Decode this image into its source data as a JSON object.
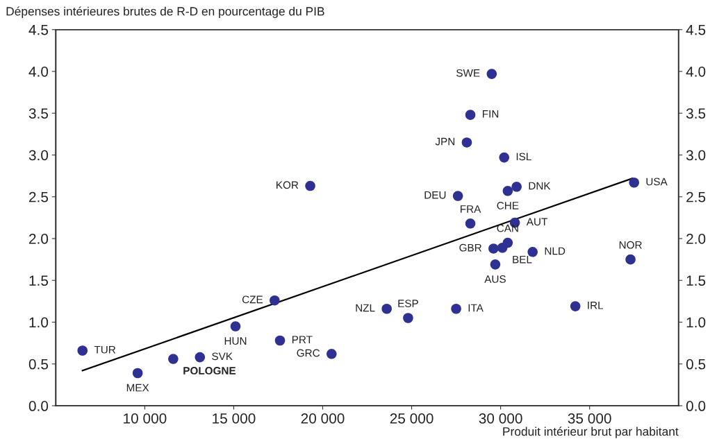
{
  "chart_data": {
    "type": "scatter",
    "ylabel": "Dépenses intérieures brutes de R-D en pourcentage du PIB",
    "xlabel": "Produit intérieur brut par habitant",
    "xlim": [
      5000,
      40000
    ],
    "xticks": [
      {
        "value": 10000,
        "label": "10 000"
      },
      {
        "value": 15000,
        "label": "15 000"
      },
      {
        "value": 20000,
        "label": "20 000"
      },
      {
        "value": 25000,
        "label": "25 000"
      },
      {
        "value": 30000,
        "label": "30 000"
      },
      {
        "value": 35000,
        "label": "35 000"
      }
    ],
    "ylim": [
      0,
      4.5
    ],
    "yticks": [
      {
        "value": 0,
        "label": "0.0"
      },
      {
        "value": 0.5,
        "label": "0.5"
      },
      {
        "value": 1,
        "label": "1.0"
      },
      {
        "value": 1.5,
        "label": "1.5"
      },
      {
        "value": 2,
        "label": "2.0"
      },
      {
        "value": 2.5,
        "label": "2.5"
      },
      {
        "value": 3,
        "label": "3.0"
      },
      {
        "value": 3.5,
        "label": "3.5"
      },
      {
        "value": 4,
        "label": "4.0"
      },
      {
        "value": 4.5,
        "label": "4.5"
      }
    ],
    "y2lim": [
      0,
      4.5
    ],
    "y2ticks": [
      {
        "value": 0,
        "label": "0.0"
      },
      {
        "value": 0.5,
        "label": "0.5"
      },
      {
        "value": 1,
        "label": "1.0"
      },
      {
        "value": 1.5,
        "label": "1.5"
      },
      {
        "value": 2,
        "label": "2.0"
      },
      {
        "value": 2.5,
        "label": "2.5"
      },
      {
        "value": 3,
        "label": "3.0"
      },
      {
        "value": 3.5,
        "label": "3.5"
      },
      {
        "value": 4,
        "label": "4.0"
      },
      {
        "value": 4.5,
        "label": "4.5"
      }
    ],
    "grid": false,
    "legend": false,
    "marker": "circle",
    "series": [
      {
        "color": "#2e3192",
        "x": [
          29500,
          28300,
          28100,
          30200,
          19300,
          27600,
          30400,
          30900,
          37500,
          28300,
          30800,
          30400,
          29600,
          30100,
          31800,
          37300,
          29700,
          17300,
          23600,
          24800,
          27500,
          34200,
          6500,
          15100,
          17600,
          20500,
          13100,
          11600,
          9600
        ],
        "values": [
          3.97,
          3.48,
          3.15,
          2.97,
          2.63,
          2.51,
          2.57,
          2.62,
          2.67,
          2.18,
          2.19,
          1.95,
          1.88,
          1.89,
          1.84,
          1.75,
          1.69,
          1.26,
          1.16,
          1.05,
          1.16,
          1.19,
          0.66,
          0.95,
          0.78,
          0.62,
          0.58,
          0.56,
          0.39
        ]
      },
      {
        "type": "line",
        "color": "#000000",
        "line_style": "solid",
        "marker": "none",
        "x": [
          6500,
          37400
        ],
        "values": [
          0.42,
          2.72
        ]
      }
    ],
    "annotations": [
      {
        "text": "SWE",
        "x": 29500,
        "y": 3.97
      },
      {
        "text": "FIN",
        "x": 28300,
        "y": 3.48
      },
      {
        "text": "JPN",
        "x": 28100,
        "y": 3.15
      },
      {
        "text": "ISL",
        "x": 30200,
        "y": 2.97
      },
      {
        "text": "KOR",
        "x": 19300,
        "y": 2.63
      },
      {
        "text": "DEU",
        "x": 27600,
        "y": 2.51
      },
      {
        "text": "CHE",
        "x": 30400,
        "y": 2.57
      },
      {
        "text": "DNK",
        "x": 30900,
        "y": 2.62
      },
      {
        "text": "USA",
        "x": 37500,
        "y": 2.67
      },
      {
        "text": "FRA",
        "x": 28300,
        "y": 2.18
      },
      {
        "text": "AUT",
        "x": 30800,
        "y": 2.19
      },
      {
        "text": "CAN",
        "x": 30400,
        "y": 1.95
      },
      {
        "text": "GBR",
        "x": 29600,
        "y": 1.88
      },
      {
        "text": "BEL",
        "x": 30100,
        "y": 1.89
      },
      {
        "text": "NLD",
        "x": 31800,
        "y": 1.84
      },
      {
        "text": "NOR",
        "x": 37300,
        "y": 1.75
      },
      {
        "text": "AUS",
        "x": 29700,
        "y": 1.69
      },
      {
        "text": "CZE",
        "x": 17300,
        "y": 1.26
      },
      {
        "text": "NZL",
        "x": 23600,
        "y": 1.16
      },
      {
        "text": "ESP",
        "x": 24800,
        "y": 1.05
      },
      {
        "text": "ITA",
        "x": 27500,
        "y": 1.16
      },
      {
        "text": "IRL",
        "x": 34200,
        "y": 1.19
      },
      {
        "text": "TUR",
        "x": 6500,
        "y": 0.66
      },
      {
        "text": "HUN",
        "x": 15100,
        "y": 0.95
      },
      {
        "text": "PRT",
        "x": 17600,
        "y": 0.78
      },
      {
        "text": "GRC",
        "x": 20500,
        "y": 0.62
      },
      {
        "text": "SVK",
        "x": 13100,
        "y": 0.58
      },
      {
        "text": "POLOGNE",
        "x": 11600,
        "y": 0.56
      },
      {
        "text": "MEX",
        "x": 9600,
        "y": 0.39
      }
    ]
  }
}
